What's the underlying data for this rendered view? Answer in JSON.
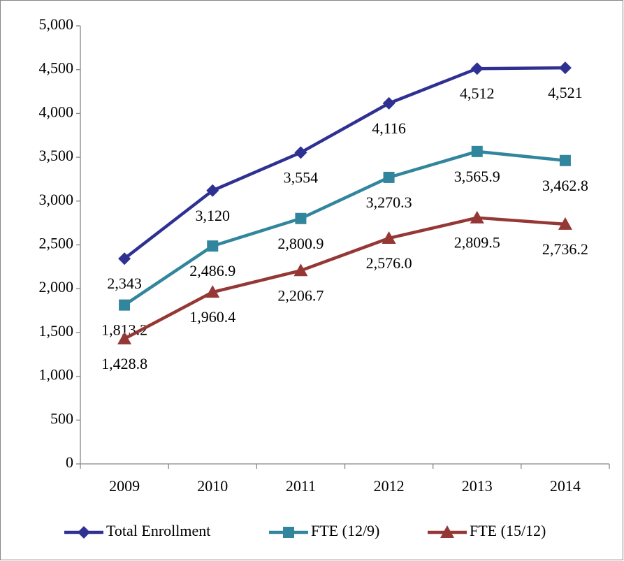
{
  "chart_data": {
    "type": "line",
    "categories": [
      "2009",
      "2010",
      "2011",
      "2012",
      "2013",
      "2014"
    ],
    "series": [
      {
        "name": "Total Enrollment",
        "color": "#2e3192",
        "marker": "diamond",
        "values": [
          2343,
          3120,
          3554,
          4116,
          4512,
          4521
        ],
        "value_labels": [
          "2,343",
          "3,120",
          "3,554",
          "4,116",
          "4,512",
          "4,521"
        ]
      },
      {
        "name": "FTE (12/9)",
        "color": "#31859c",
        "marker": "square",
        "values": [
          1813.2,
          2486.9,
          2800.9,
          3270.3,
          3565.9,
          3462.8
        ],
        "value_labels": [
          "1,813.2",
          "2,486.9",
          "2,800.9",
          "3,270.3",
          "3,565.9",
          "3,462.8"
        ]
      },
      {
        "name": "FTE (15/12)",
        "color": "#953735",
        "marker": "triangle",
        "values": [
          1428.8,
          1960.4,
          2206.7,
          2576.0,
          2809.5,
          2736.2
        ],
        "value_labels": [
          "1,428.8",
          "1,960.4",
          "2,206.7",
          "2,576.0",
          "2,809.5",
          "2,736.2"
        ]
      }
    ],
    "ylim": [
      0,
      5000
    ],
    "yticks": [
      0,
      500,
      {
        "value": 1000,
        "label": "1,000"
      },
      {
        "value": 1500,
        "label": "1,500"
      },
      {
        "value": 2000,
        "label": "2,000"
      },
      {
        "value": 2500,
        "label": "2,500"
      },
      {
        "value": 3000,
        "label": "3,000"
      },
      {
        "value": 3500,
        "label": "3,500"
      },
      {
        "value": 4000,
        "label": "4,000"
      },
      {
        "value": 4500,
        "label": "4,500"
      },
      {
        "value": 5000,
        "label": "5,000"
      }
    ],
    "grid": false,
    "legend": "bottom"
  }
}
